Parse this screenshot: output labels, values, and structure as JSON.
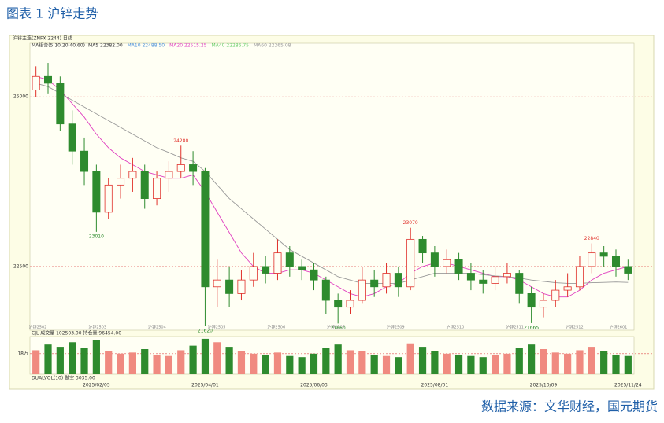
{
  "chart_data": {
    "type": "candlestick",
    "title": "图表 1 沪锌走势",
    "source": "数据来源：文华财经，国元期货",
    "header": "沪锌主连(ZNFX 2244)  日线",
    "ma_label": "MA组合(5,10,20,40,60)",
    "ma_legend": [
      {
        "text": "MA5 22382.00",
        "color": "#333333"
      },
      {
        "text": "MA10 22488.50",
        "color": "#4a90d9"
      },
      {
        "text": "MA20 22515.25",
        "color": "#e040c0"
      },
      {
        "text": "MA40 22286.75",
        "color": "#66cc66"
      },
      {
        "text": "MA60 22265.08",
        "color": "#999999"
      }
    ],
    "categories": [
      null,
      null,
      null,
      null,
      null,
      "2025/02/05",
      null,
      null,
      null,
      null,
      null,
      null,
      null,
      null,
      "2025/04/01",
      null,
      null,
      null,
      null,
      null,
      null,
      null,
      null,
      "2025/06/03",
      null,
      null,
      null,
      null,
      null,
      null,
      null,
      null,
      null,
      "2025/08/01",
      null,
      null,
      null,
      null,
      null,
      null,
      null,
      null,
      "2025/10/09",
      null,
      null,
      null,
      null,
      null,
      null,
      "2025/11/24"
    ],
    "open": [
      25100,
      25300,
      25200,
      24600,
      24200,
      23900,
      23300,
      23700,
      23800,
      23900,
      23500,
      23800,
      23900,
      24000,
      23900,
      22200,
      22300,
      22100,
      22300,
      22500,
      22400,
      22700,
      22500,
      22450,
      22300,
      22000,
      21900,
      22000,
      22300,
      22200,
      22400,
      22200,
      22900,
      22700,
      22500,
      22600,
      22400,
      22300,
      22250,
      22350,
      22400,
      22100,
      21900,
      22000,
      22150,
      22200,
      22500,
      22700,
      22650,
      22500
    ],
    "high": [
      25450,
      25500,
      25300,
      24800,
      24400,
      24000,
      23800,
      24000,
      24100,
      24000,
      23900,
      24050,
      24280,
      24200,
      23950,
      22600,
      22500,
      22450,
      22700,
      22650,
      22900,
      22800,
      22600,
      22550,
      22350,
      22100,
      22150,
      22500,
      22450,
      22550,
      22500,
      23070,
      22950,
      22800,
      22750,
      22700,
      22550,
      22450,
      22500,
      22550,
      22450,
      22200,
      22100,
      22300,
      22400,
      22650,
      22840,
      22800,
      22750,
      22600
    ],
    "low": [
      25000,
      25050,
      24500,
      24000,
      23700,
      23010,
      23200,
      23500,
      23600,
      23350,
      23400,
      23600,
      23800,
      23700,
      21620,
      21900,
      21900,
      22000,
      22200,
      22250,
      22300,
      22350,
      22300,
      22150,
      21800,
      21660,
      21800,
      21950,
      22050,
      22100,
      22050,
      22150,
      22550,
      22350,
      22400,
      22300,
      22150,
      22100,
      22150,
      22250,
      21950,
      21665,
      21750,
      21900,
      22050,
      22150,
      22400,
      22500,
      22350,
      22300
    ],
    "close": [
      25300,
      25200,
      24600,
      24200,
      23900,
      23300,
      23700,
      23800,
      23900,
      23500,
      23800,
      23900,
      24000,
      23900,
      22200,
      22300,
      22100,
      22300,
      22500,
      22400,
      22700,
      22500,
      22450,
      22300,
      22000,
      21900,
      22000,
      22300,
      22200,
      22400,
      22200,
      22900,
      22700,
      22500,
      22600,
      22400,
      22300,
      22250,
      22350,
      22400,
      22100,
      21900,
      22000,
      22150,
      22200,
      22500,
      22700,
      22650,
      22500,
      22400
    ],
    "up_color": "#e0302a",
    "down_color": "#2e8b2e",
    "lines": [
      {
        "color": "#e040c0",
        "values": [
          25300,
          25250,
          25100,
          24900,
          24700,
          24450,
          24250,
          24100,
          24000,
          23900,
          23850,
          23800,
          23800,
          23850,
          23600,
          23300,
          23000,
          22700,
          22500,
          22400,
          22400,
          22450,
          22450,
          22400,
          22300,
          22200,
          22100,
          22050,
          22100,
          22200,
          22250,
          22400,
          22500,
          22550,
          22550,
          22500,
          22450,
          22400,
          22350,
          22350,
          22300,
          22200,
          22100,
          22050,
          22050,
          22150,
          22300,
          22400,
          22450,
          22500
        ]
      },
      {
        "color": "#999999",
        "values": [
          25200,
          25150,
          25050,
          24950,
          24850,
          24750,
          24650,
          24550,
          24450,
          24350,
          24250,
          24180,
          24100,
          24050,
          23900,
          23700,
          23500,
          23350,
          23200,
          23050,
          22900,
          22750,
          22650,
          22550,
          22450,
          22350,
          22300,
          22250,
          22250,
          22250,
          22250,
          22300,
          22350,
          22400,
          22400,
          22400,
          22400,
          22380,
          22360,
          22350,
          22330,
          22300,
          22280,
          22260,
          22250,
          22250,
          22260,
          22265,
          22270,
          22265
        ]
      }
    ],
    "annotations": [
      23010,
      24280,
      21620,
      21660,
      23070,
      21665,
      22840
    ],
    "ylim": [
      21560,
      25790
    ],
    "yticks": [
      22500,
      25000
    ],
    "grid": true,
    "contracts": [
      "沪锌2502",
      "沪锌2503",
      "沪锌2504",
      "沪锌2505",
      "沪锌2506",
      "沪锌2507",
      "沪锌2509",
      "沪锌2510",
      "沪锌2511",
      "沪锌2512",
      "沪锌2601"
    ],
    "volume": {
      "header": "CJL  成交量 102503.00  持仓量 96454.00",
      "footer": "DUALVOL(10)  做空  3035.00",
      "values": [
        210000,
        260000,
        240000,
        280000,
        230000,
        300000,
        200000,
        180000,
        190000,
        220000,
        170000,
        160000,
        210000,
        250000,
        310000,
        280000,
        240000,
        200000,
        180000,
        170000,
        190000,
        160000,
        150000,
        180000,
        230000,
        260000,
        210000,
        200000,
        170000,
        160000,
        150000,
        270000,
        240000,
        200000,
        180000,
        170000,
        160000,
        150000,
        170000,
        180000,
        230000,
        260000,
        220000,
        190000,
        180000,
        210000,
        240000,
        200000,
        170000,
        160000
      ],
      "ylim": [
        0,
        330000
      ],
      "yticks": [
        {
          "value": 180000,
          "label": "18万"
        }
      ]
    }
  }
}
